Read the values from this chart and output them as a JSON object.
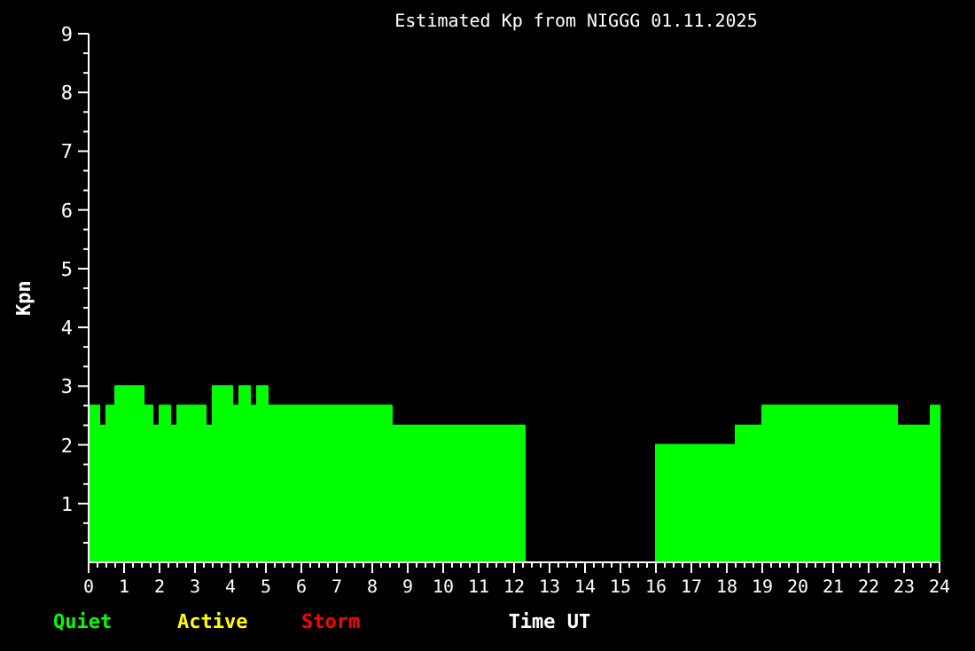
{
  "chart_data": {
    "type": "area",
    "title": "Estimated Kp from NIGGG 01.11.2025",
    "xlabel": "Time UT",
    "ylabel": "Kpn",
    "x": [
      0,
      0.3,
      0.5,
      0.75,
      1.55,
      1.8,
      2.0,
      2.3,
      2.5,
      3.3,
      3.5,
      4.05,
      4.25,
      4.55,
      4.75,
      5.05,
      8.55,
      12.3,
      16,
      18.25,
      19,
      22.8,
      23.75,
      24
    ],
    "series": [
      {
        "name": "Quiet",
        "color": "#00ff00",
        "values": [
          2.67,
          2.33,
          2.67,
          3,
          2.67,
          2.33,
          2.67,
          2.33,
          2.67,
          2.33,
          3,
          2.67,
          3,
          2.67,
          3,
          2.67,
          2.33,
          null,
          2,
          2.33,
          2.67,
          2.33,
          2.67,
          2.67
        ]
      },
      {
        "name": "Active",
        "color": "#ffff00",
        "values": [
          null,
          null,
          null,
          null,
          null,
          null,
          null,
          null,
          null,
          null,
          null,
          null,
          null,
          null,
          null,
          null,
          null,
          null,
          null,
          null,
          null,
          null,
          null,
          null
        ]
      },
      {
        "name": "Storm",
        "color": "#ff0000",
        "values": [
          null,
          null,
          null,
          null,
          null,
          null,
          null,
          null,
          null,
          null,
          null,
          null,
          null,
          null,
          null,
          null,
          null,
          null,
          null,
          null,
          null,
          null,
          null,
          null
        ]
      }
    ],
    "xlim": [
      0,
      24
    ],
    "ylim": [
      0,
      9
    ],
    "xticks": [
      0,
      {
        "value": 0.25,
        "label": null
      },
      {
        "value": 0.5,
        "label": null
      },
      {
        "value": 0.75,
        "label": null
      },
      1,
      {
        "value": 1.25,
        "label": null
      },
      {
        "value": 1.5,
        "label": null
      },
      {
        "value": 1.75,
        "label": null
      },
      2,
      {
        "value": 2.25,
        "label": null
      },
      {
        "value": 2.5,
        "label": null
      },
      {
        "value": 2.75,
        "label": null
      },
      3,
      {
        "value": 3.25,
        "label": null
      },
      {
        "value": 3.5,
        "label": null
      },
      {
        "value": 3.75,
        "label": null
      },
      4,
      {
        "value": 4.25,
        "label": null
      },
      {
        "value": 4.5,
        "label": null
      },
      {
        "value": 4.75,
        "label": null
      },
      5,
      {
        "value": 5.25,
        "label": null
      },
      {
        "value": 5.5,
        "label": null
      },
      {
        "value": 5.75,
        "label": null
      },
      6,
      {
        "value": 6.25,
        "label": null
      },
      {
        "value": 6.5,
        "label": null
      },
      {
        "value": 6.75,
        "label": null
      },
      7,
      {
        "value": 7.25,
        "label": null
      },
      {
        "value": 7.5,
        "label": null
      },
      {
        "value": 7.75,
        "label": null
      },
      8,
      {
        "value": 8.25,
        "label": null
      },
      {
        "value": 8.5,
        "label": null
      },
      {
        "value": 8.75,
        "label": null
      },
      9,
      {
        "value": 9.25,
        "label": null
      },
      {
        "value": 9.5,
        "label": null
      },
      {
        "value": 9.75,
        "label": null
      },
      10,
      {
        "value": 10.25,
        "label": null
      },
      {
        "value": 10.5,
        "label": null
      },
      {
        "value": 10.75,
        "label": null
      },
      11,
      {
        "value": 11.25,
        "label": null
      },
      {
        "value": 11.5,
        "label": null
      },
      {
        "value": 11.75,
        "label": null
      },
      12,
      {
        "value": 12.25,
        "label": null
      },
      {
        "value": 12.5,
        "label": null
      },
      {
        "value": 12.75,
        "label": null
      },
      13,
      {
        "value": 13.25,
        "label": null
      },
      {
        "value": 13.5,
        "label": null
      },
      {
        "value": 13.75,
        "label": null
      },
      14,
      {
        "value": 14.25,
        "label": null
      },
      {
        "value": 14.5,
        "label": null
      },
      {
        "value": 14.75,
        "label": null
      },
      15,
      {
        "value": 15.25,
        "label": null
      },
      {
        "value": 15.5,
        "label": null
      },
      {
        "value": 15.75,
        "label": null
      },
      16,
      {
        "value": 16.25,
        "label": null
      },
      {
        "value": 16.5,
        "label": null
      },
      {
        "value": 16.75,
        "label": null
      },
      17,
      {
        "value": 17.25,
        "label": null
      },
      {
        "value": 17.5,
        "label": null
      },
      {
        "value": 17.75,
        "label": null
      },
      18,
      {
        "value": 18.25,
        "label": null
      },
      {
        "value": 18.5,
        "label": null
      },
      {
        "value": 18.75,
        "label": null
      },
      19,
      {
        "value": 19.25,
        "label": null
      },
      {
        "value": 19.5,
        "label": null
      },
      {
        "value": 19.75,
        "label": null
      },
      20,
      {
        "value": 20.25,
        "label": null
      },
      {
        "value": 20.5,
        "label": null
      },
      {
        "value": 20.75,
        "label": null
      },
      21,
      {
        "value": 21.25,
        "label": null
      },
      {
        "value": 21.5,
        "label": null
      },
      {
        "value": 21.75,
        "label": null
      },
      22,
      {
        "value": 22.25,
        "label": null
      },
      {
        "value": 22.5,
        "label": null
      },
      {
        "value": 22.75,
        "label": null
      },
      23,
      {
        "value": 23.25,
        "label": null
      },
      {
        "value": 23.5,
        "label": null
      },
      {
        "value": 23.75,
        "label": null
      },
      24
    ],
    "yticks": [
      {
        "value": 0.333,
        "label": null
      },
      {
        "value": 0.667,
        "label": null
      },
      1,
      {
        "value": 1.333,
        "label": null
      },
      {
        "value": 1.667,
        "label": null
      },
      2,
      {
        "value": 2.333,
        "label": null
      },
      {
        "value": 2.667,
        "label": null
      },
      3,
      {
        "value": 3.333,
        "label": null
      },
      {
        "value": 3.667,
        "label": null
      },
      4,
      {
        "value": 4.333,
        "label": null
      },
      {
        "value": 4.667,
        "label": null
      },
      5,
      {
        "value": 5.333,
        "label": null
      },
      {
        "value": 5.667,
        "label": null
      },
      6,
      {
        "value": 6.333,
        "label": null
      },
      {
        "value": 6.667,
        "label": null
      },
      7,
      {
        "value": 7.333,
        "label": null
      },
      {
        "value": 7.667,
        "label": null
      },
      8,
      {
        "value": 8.333,
        "label": null
      },
      {
        "value": 8.667,
        "label": null
      },
      9
    ]
  }
}
